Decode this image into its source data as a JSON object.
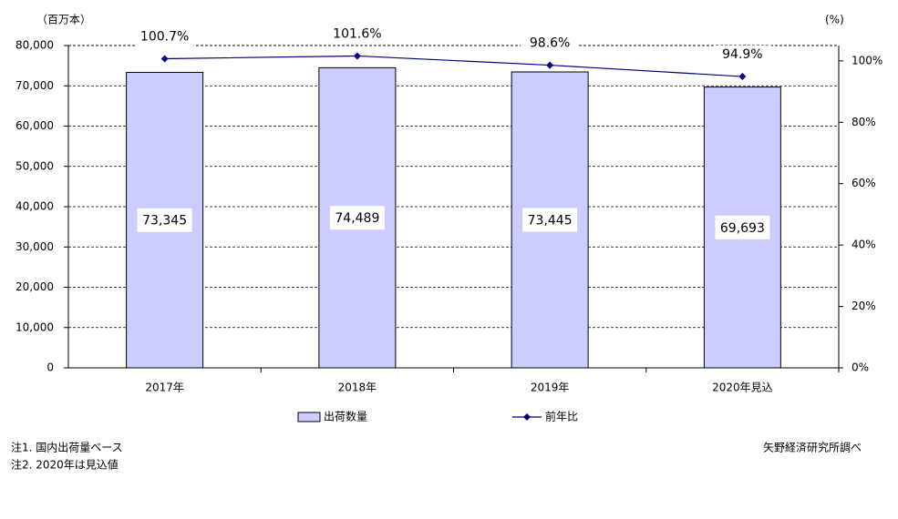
{
  "chart_data": {
    "type": "bar_line",
    "y_label": "（百万本）",
    "y2_label": "(%)",
    "categories": [
      "2017年",
      "2018年",
      "2019年",
      "2020年見込"
    ],
    "series": [
      {
        "name": "出荷数量",
        "type": "bar",
        "color": "#ccccff",
        "values": [
          73345,
          74489,
          73445,
          69693
        ],
        "value_labels": [
          "73,345",
          "74,489",
          "73,445",
          "69,693"
        ]
      },
      {
        "name": "前年比",
        "type": "line",
        "axis": "y2",
        "color": "#000080",
        "values": [
          100.7,
          101.6,
          98.6,
          94.9
        ],
        "value_labels": [
          "100.7%",
          "101.6%",
          "98.6%",
          "94.9%"
        ]
      }
    ],
    "ylim": [
      0,
      80000
    ],
    "yticks": [
      0,
      {
        "value": 10000,
        "label": "10,000"
      },
      {
        "value": 20000,
        "label": "20,000"
      },
      {
        "value": 30000,
        "label": "30,000"
      },
      {
        "value": 40000,
        "label": "40,000"
      },
      {
        "value": 50000,
        "label": "50,000"
      },
      {
        "value": 60000,
        "label": "60,000"
      },
      {
        "value": 70000,
        "label": "70,000"
      },
      {
        "value": 80000,
        "label": "80,000"
      }
    ],
    "y2lim": [
      0,
      105
    ],
    "y2ticks": [
      {
        "value": 0,
        "label": "0%"
      },
      {
        "value": 20,
        "label": "20%"
      },
      {
        "value": 40,
        "label": "40%"
      },
      {
        "value": 60,
        "label": "60%"
      },
      {
        "value": 80,
        "label": "80%"
      },
      {
        "value": 100,
        "label": "100%"
      }
    ],
    "grid": true,
    "notes": [
      "注1. 国内出荷量ベース",
      "注2. 2020年は見込値"
    ],
    "source": "矢野経済研究所調べ"
  }
}
